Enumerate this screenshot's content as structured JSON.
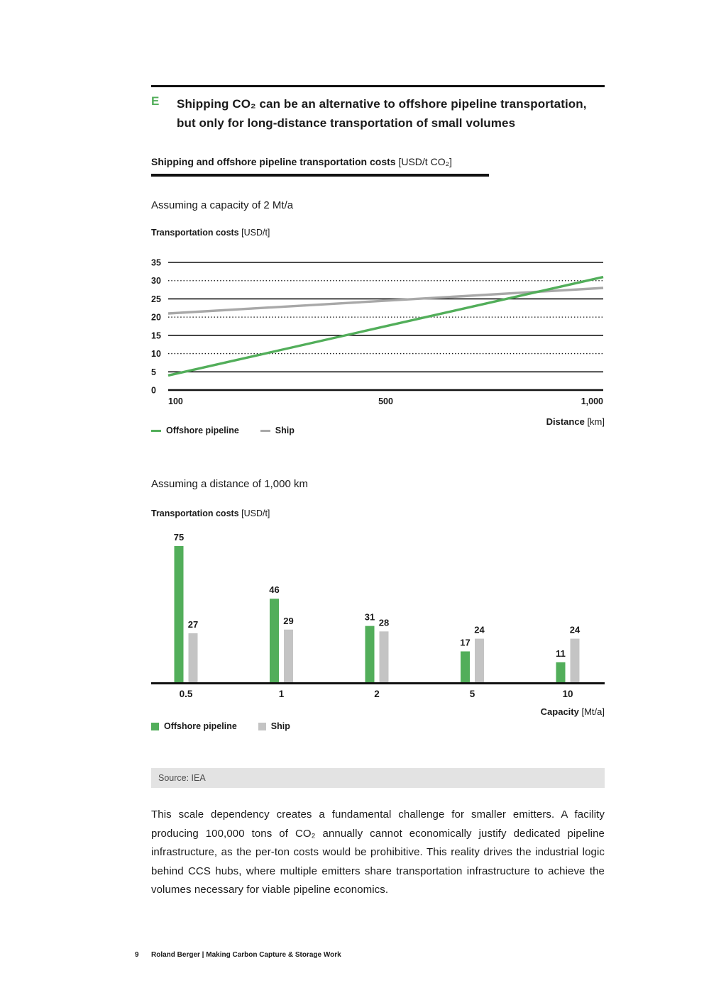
{
  "colors": {
    "green": "#52ae5a",
    "ship_line_gray": "#a8a8a8",
    "ship_bar_gray": "#c4c4c4",
    "text": "#1a1a1a",
    "source_bg": "#e3e3e3"
  },
  "header": {
    "letter": "E",
    "title_lines": [
      "Shipping CO₂ can be an alternative to offshore pipeline transportation,",
      "but only for long-distance transportation of small volumes"
    ]
  },
  "exhibit": {
    "title": "Shipping and offshore pipeline transportation costs",
    "unit": "[USD/t CO₂]"
  },
  "chart_data": [
    {
      "type": "line",
      "subtitle": "Assuming a capacity of 2 Mt/a",
      "ylabel": "Transportation costs",
      "ylabel_unit": "[USD/t]",
      "xlabel": "Distance",
      "xlabel_unit": "[km]",
      "x_range": [
        100,
        1000
      ],
      "x_ticks": [
        "100",
        "500",
        "1,000"
      ],
      "ylim": [
        0,
        35
      ],
      "y_ticks": [
        0,
        5,
        10,
        15,
        20,
        25,
        30,
        35
      ],
      "grid": "solid at 5/15/25/35, dotted at 10/20/30, heavy baseline at 0",
      "legend_position": "bottom-left",
      "series": [
        {
          "name": "Offshore pipeline",
          "color_key": "green",
          "points": [
            [
              100,
              4
            ],
            [
              1000,
              31
            ]
          ]
        },
        {
          "name": "Ship",
          "color_key": "ship_line_gray",
          "points": [
            [
              100,
              21
            ],
            [
              1000,
              28
            ]
          ]
        }
      ]
    },
    {
      "type": "bar",
      "subtitle": "Assuming a distance of 1,000 km",
      "ylabel": "Transportation costs",
      "ylabel_unit": "[USD/t]",
      "xlabel": "Capacity",
      "xlabel_unit": "[Mt/a]",
      "categories": [
        "0.5",
        "1",
        "2",
        "5",
        "10"
      ],
      "ylim": [
        0,
        75
      ],
      "legend_position": "bottom-left",
      "series": [
        {
          "name": "Offshore pipeline",
          "color_key": "green",
          "values": [
            75,
            46,
            31,
            17,
            11
          ]
        },
        {
          "name": "Ship",
          "color_key": "ship_bar_gray",
          "values": [
            27,
            29,
            28,
            24,
            24
          ]
        }
      ]
    }
  ],
  "source": "Source: IEA",
  "paragraph": "This scale dependency creates a fundamental challenge for smaller emitters. A facility producing 100,000 tons of CO₂ annually cannot economically justify dedicated pipeline infrastructure, as the per-ton costs would be prohibitive. This reality drives the industrial logic behind CCS hubs, where multiple emitters share transportation infrastructure to achieve the volumes necessary for viable pipeline economics.",
  "footer": {
    "page_number": "9",
    "text": "Roland Berger | Making Carbon Capture & Storage Work"
  }
}
